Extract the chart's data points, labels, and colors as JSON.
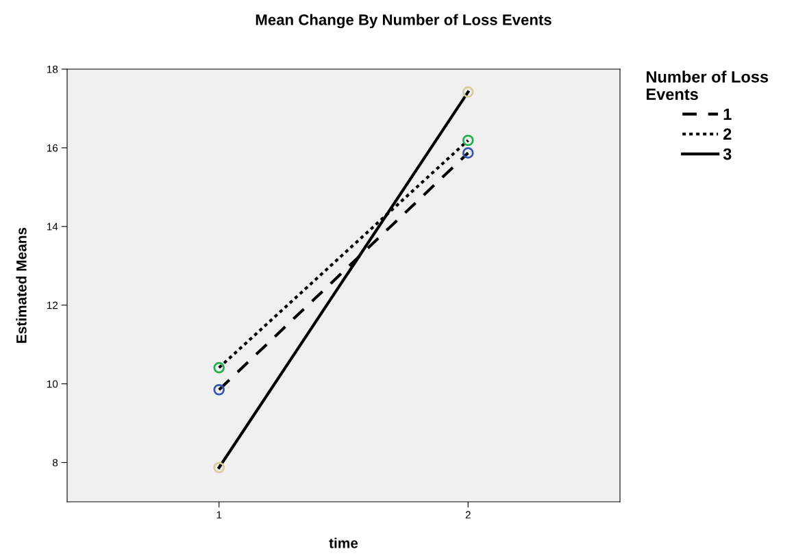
{
  "chart_data": {
    "type": "line",
    "title": "Mean Change By Number of Loss Events",
    "xlabel": "time",
    "ylabel": "Estimated Means",
    "legend_title": "Number of Loss\nEvents",
    "categories": [
      "1",
      "2"
    ],
    "series": [
      {
        "name": "1",
        "color": "#000000",
        "colors": [
          "#3a56b0",
          "#3a56b0"
        ],
        "line_style": "dashed",
        "values": [
          9.85,
          15.87
        ]
      },
      {
        "name": "2",
        "color": "#000000",
        "colors": [
          "#22b24c",
          "#22b24c"
        ],
        "line_style": "dotted",
        "values": [
          10.41,
          16.19
        ]
      },
      {
        "name": "3",
        "color": "#000000",
        "colors": [
          "#d4cf98",
          "#d4cf98"
        ],
        "line_style": "solid",
        "values": [
          7.87,
          17.42
        ]
      }
    ],
    "ylim": [
      7,
      18
    ],
    "yticks": [
      8,
      10,
      12,
      14,
      16,
      18
    ],
    "marker": "circle",
    "legend": "top right",
    "grid": false
  }
}
